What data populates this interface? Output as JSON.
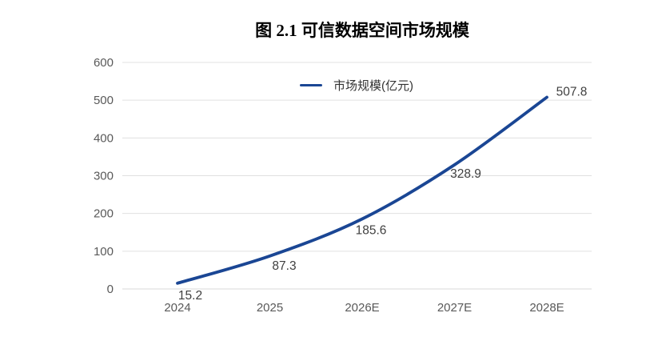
{
  "chart_data": {
    "type": "line",
    "title": "图 2.1  可信数据空间市场规模",
    "legend": "市场规模(亿元)",
    "series": [
      {
        "name": "市场规模(亿元)",
        "values": [
          15.2,
          87.3,
          185.6,
          328.9,
          507.8
        ],
        "data_labels": [
          "15.2",
          "87.3",
          "185.6",
          "328.9",
          "507.8"
        ]
      }
    ],
    "categories": [
      "2024",
      "2025",
      "2026E",
      "2027E",
      "2028E"
    ],
    "xlabel": "",
    "ylabel": "",
    "ylim": [
      0,
      600
    ],
    "y_ticks": [
      0,
      100,
      200,
      300,
      400,
      500,
      600
    ],
    "grid": true,
    "legend_position": "top-center",
    "line_smooth": true,
    "colors": {
      "line": "#1A4694",
      "gridline": "#E0E0E0",
      "axis_line": "#D9D9D9",
      "axis_text": "#595959",
      "data_label_text": "#3F3F3F",
      "legend_text": "#333333",
      "title_text": "#000000",
      "background": "#FFFFFF"
    }
  }
}
